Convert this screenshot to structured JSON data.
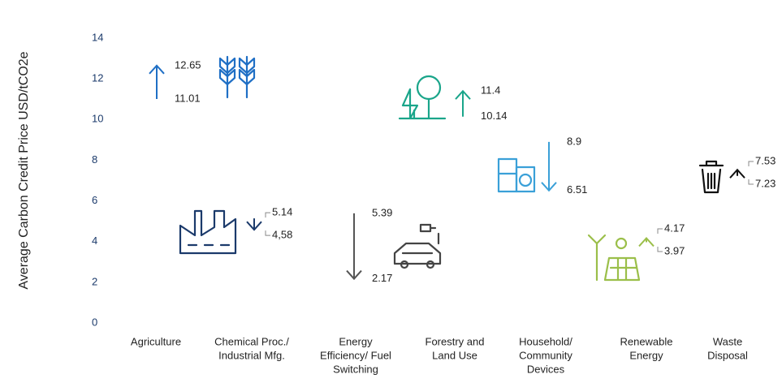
{
  "chart_data": {
    "type": "arrow",
    "y_label": "Average Carbon Credit Price USD/tCO2e",
    "categories": [
      [
        "Agriculture"
      ],
      [
        "Chemical Proc./",
        "Industrial Mfg."
      ],
      [
        "Energy",
        "Efficiency/ Fuel",
        "Switching"
      ],
      [
        "Forestry and",
        "Land Use"
      ],
      [
        "Household/",
        "Community",
        "Devices"
      ],
      [
        "Renewable",
        "Energy"
      ],
      [
        "Waste",
        "Disposal"
      ]
    ],
    "colors": [
      "#1f6fc5",
      "#1b3a6b",
      "#555555",
      "#1aa58a",
      "#3aa0d8",
      "#9bbf4a",
      "#111111"
    ],
    "series": [
      {
        "values": [
          11.01,
          5.14,
          5.39,
          10.14,
          8.9,
          3.97,
          7.23
        ]
      },
      {
        "values": [
          12.65,
          4.58,
          2.17,
          11.4,
          6.51,
          4.17,
          7.53
        ],
        "value_labels": [
          "12.65",
          "4,58",
          "2.17",
          "11.4",
          "6.51",
          "4.17",
          "7.53"
        ]
      }
    ],
    "ylim": [
      0,
      14
    ],
    "yticks": [
      0,
      2,
      4,
      6,
      8,
      10,
      12,
      14
    ]
  }
}
